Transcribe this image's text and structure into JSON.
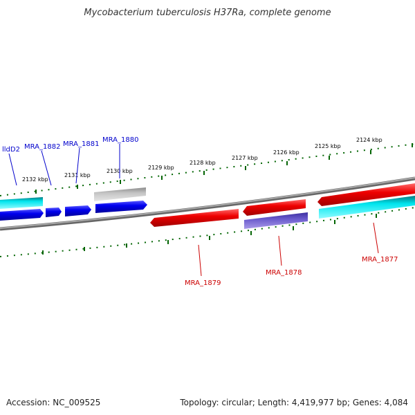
{
  "title": "Mycobacterium tuberculosis H37Ra, complete genome",
  "footer": {
    "accession": "Accession: NC_009525",
    "topology": "Topology: circular; Length: 4,419,977 bp; Genes: 4,084"
  },
  "colors": {
    "forward_gene": "#0000ee",
    "reverse_gene": "#ee0000",
    "cds_cyan": "#00e5ee",
    "pseudo_gray": "#bbbbbb",
    "purple": "#6a5acd",
    "backbone": "#888888",
    "tick": "#006400"
  },
  "kbp_labels": [
    "2132 kbp",
    "2131 kbp",
    "2130 kbp",
    "2129 kbp",
    "2128 kbp",
    "2127 kbp",
    "2126 kbp",
    "2125 kbp",
    "2124 kbp"
  ],
  "gene_labels": [
    {
      "text": "lldD2",
      "color": "#0000cc"
    },
    {
      "text": "MRA_1882",
      "color": "#0000cc"
    },
    {
      "text": "MRA_1881",
      "color": "#0000cc"
    },
    {
      "text": "MRA_1880",
      "color": "#0000cc"
    },
    {
      "text": "MRA_1879",
      "color": "#cc0000"
    },
    {
      "text": "MRA_1878",
      "color": "#cc0000"
    },
    {
      "text": "MRA_1877",
      "color": "#cc0000"
    }
  ]
}
